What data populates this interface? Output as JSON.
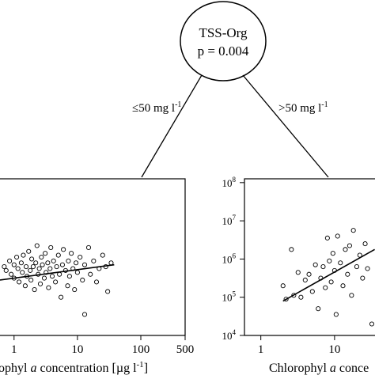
{
  "root_node": {
    "variable": "TSS-Org",
    "p_value": "p = 0.004"
  },
  "edges": {
    "left_label": "≤50 mg l",
    "left_sup": "-1",
    "right_label": ">50 mg l",
    "right_sup": "-1"
  },
  "chart_data": [
    {
      "type": "scatter",
      "panel": "left",
      "xscale": "log",
      "xlabel_prefix": "ophyl ",
      "xlabel_italic": "a",
      "xlabel_suffix": " concentration [µg l",
      "xlabel_sup": "-1",
      "xlabel_end": "]",
      "xlim": [
        0.6,
        500
      ],
      "xticks": [
        {
          "value": 1,
          "label": "1"
        },
        {
          "value": 10,
          "label": "10"
        },
        {
          "value": 100,
          "label": "100"
        },
        {
          "value": 500,
          "label": "500"
        }
      ],
      "ylim_log": [
        4,
        8.1
      ],
      "fit_line": {
        "x": [
          0.6,
          38
        ],
        "y_log": [
          5.45,
          5.85
        ]
      },
      "points": [
        {
          "x": 0.7,
          "y_log": 5.8
        },
        {
          "x": 0.75,
          "y_log": 5.7
        },
        {
          "x": 0.85,
          "y_log": 5.95
        },
        {
          "x": 0.9,
          "y_log": 5.6
        },
        {
          "x": 1.0,
          "y_log": 5.85
        },
        {
          "x": 1.0,
          "y_log": 5.5
        },
        {
          "x": 1.1,
          "y_log": 6.05
        },
        {
          "x": 1.15,
          "y_log": 5.75
        },
        {
          "x": 1.2,
          "y_log": 5.4
        },
        {
          "x": 1.3,
          "y_log": 5.9
        },
        {
          "x": 1.35,
          "y_log": 5.65
        },
        {
          "x": 1.4,
          "y_log": 6.1
        },
        {
          "x": 1.5,
          "y_log": 5.3
        },
        {
          "x": 1.55,
          "y_log": 5.8
        },
        {
          "x": 1.6,
          "y_log": 5.55
        },
        {
          "x": 1.7,
          "y_log": 6.2
        },
        {
          "x": 1.8,
          "y_log": 5.7
        },
        {
          "x": 1.85,
          "y_log": 5.45
        },
        {
          "x": 1.9,
          "y_log": 6.0
        },
        {
          "x": 2.0,
          "y_log": 5.8
        },
        {
          "x": 2.1,
          "y_log": 5.2
        },
        {
          "x": 2.2,
          "y_log": 5.9
        },
        {
          "x": 2.3,
          "y_log": 6.35
        },
        {
          "x": 2.4,
          "y_log": 5.6
        },
        {
          "x": 2.5,
          "y_log": 5.75
        },
        {
          "x": 2.6,
          "y_log": 5.35
        },
        {
          "x": 2.7,
          "y_log": 6.05
        },
        {
          "x": 2.8,
          "y_log": 5.85
        },
        {
          "x": 3.0,
          "y_log": 5.5
        },
        {
          "x": 3.1,
          "y_log": 6.15
        },
        {
          "x": 3.2,
          "y_log": 5.65
        },
        {
          "x": 3.4,
          "y_log": 5.9
        },
        {
          "x": 3.5,
          "y_log": 5.25
        },
        {
          "x": 3.7,
          "y_log": 5.75
        },
        {
          "x": 3.8,
          "y_log": 6.3
        },
        {
          "x": 4.0,
          "y_log": 5.55
        },
        {
          "x": 4.2,
          "y_log": 5.95
        },
        {
          "x": 4.5,
          "y_log": 5.4
        },
        {
          "x": 4.7,
          "y_log": 5.8
        },
        {
          "x": 5.0,
          "y_log": 6.1
        },
        {
          "x": 5.2,
          "y_log": 5.6
        },
        {
          "x": 5.5,
          "y_log": 5.0
        },
        {
          "x": 5.8,
          "y_log": 5.85
        },
        {
          "x": 6.0,
          "y_log": 6.25
        },
        {
          "x": 6.5,
          "y_log": 5.7
        },
        {
          "x": 7.0,
          "y_log": 5.3
        },
        {
          "x": 7.2,
          "y_log": 5.95
        },
        {
          "x": 7.5,
          "y_log": 5.55
        },
        {
          "x": 8.0,
          "y_log": 6.15
        },
        {
          "x": 8.5,
          "y_log": 5.75
        },
        {
          "x": 9.0,
          "y_log": 5.2
        },
        {
          "x": 9.5,
          "y_log": 5.9
        },
        {
          "x": 10,
          "y_log": 5.65
        },
        {
          "x": 11,
          "y_log": 6.05
        },
        {
          "x": 12,
          "y_log": 5.45
        },
        {
          "x": 13,
          "y_log": 5.85
        },
        {
          "x": 15,
          "y_log": 6.3
        },
        {
          "x": 16,
          "y_log": 5.6
        },
        {
          "x": 18,
          "y_log": 5.95
        },
        {
          "x": 20,
          "y_log": 5.4
        },
        {
          "x": 22,
          "y_log": 5.75
        },
        {
          "x": 25,
          "y_log": 6.1
        },
        {
          "x": 28,
          "y_log": 5.8
        },
        {
          "x": 30,
          "y_log": 5.15
        },
        {
          "x": 34,
          "y_log": 5.9
        },
        {
          "x": 13,
          "y_log": 4.55
        }
      ]
    },
    {
      "type": "scatter",
      "panel": "right",
      "xscale": "log",
      "xlabel_prefix": "Chlorophyl ",
      "xlabel_italic": "a",
      "xlabel_suffix": " conce",
      "xlim": [
        0.6,
        40
      ],
      "xticks": [
        {
          "value": 1,
          "label": "1"
        },
        {
          "value": 10,
          "label": "10"
        }
      ],
      "ylim_log": [
        4,
        8.1
      ],
      "yticks": [
        {
          "value": 4,
          "base": "10",
          "exp": "4"
        },
        {
          "value": 5,
          "base": "10",
          "exp": "5"
        },
        {
          "value": 6,
          "base": "10",
          "exp": "6"
        },
        {
          "value": 7,
          "base": "10",
          "exp": "7"
        },
        {
          "value": 8,
          "base": "10",
          "exp": "8"
        }
      ],
      "fit_line": {
        "x": [
          2.0,
          35
        ],
        "y_log": [
          4.9,
          6.25
        ]
      },
      "points": [
        {
          "x": 2.0,
          "y_log": 5.3
        },
        {
          "x": 2.2,
          "y_log": 4.95
        },
        {
          "x": 2.6,
          "y_log": 6.25
        },
        {
          "x": 2.8,
          "y_log": 5.05
        },
        {
          "x": 3.2,
          "y_log": 5.65
        },
        {
          "x": 3.5,
          "y_log": 5.0
        },
        {
          "x": 4.0,
          "y_log": 5.45
        },
        {
          "x": 4.5,
          "y_log": 5.6
        },
        {
          "x": 5.0,
          "y_log": 5.15
        },
        {
          "x": 5.5,
          "y_log": 5.85
        },
        {
          "x": 6.0,
          "y_log": 4.7
        },
        {
          "x": 6.5,
          "y_log": 5.5
        },
        {
          "x": 7.0,
          "y_log": 5.8
        },
        {
          "x": 7.5,
          "y_log": 5.25
        },
        {
          "x": 8.0,
          "y_log": 6.55
        },
        {
          "x": 8.5,
          "y_log": 5.95
        },
        {
          "x": 9.0,
          "y_log": 5.4
        },
        {
          "x": 9.5,
          "y_log": 6.15
        },
        {
          "x": 10,
          "y_log": 5.7
        },
        {
          "x": 10.5,
          "y_log": 4.55
        },
        {
          "x": 11,
          "y_log": 6.6
        },
        {
          "x": 12,
          "y_log": 5.9
        },
        {
          "x": 13,
          "y_log": 5.3
        },
        {
          "x": 14,
          "y_log": 6.25
        },
        {
          "x": 15,
          "y_log": 5.6
        },
        {
          "x": 16,
          "y_log": 6.35
        },
        {
          "x": 17,
          "y_log": 5.05
        },
        {
          "x": 18,
          "y_log": 6.75
        },
        {
          "x": 20,
          "y_log": 5.8
        },
        {
          "x": 22,
          "y_log": 6.1
        },
        {
          "x": 24,
          "y_log": 5.5
        },
        {
          "x": 26,
          "y_log": 6.4
        },
        {
          "x": 28,
          "y_log": 5.75
        },
        {
          "x": 32,
          "y_log": 4.3
        }
      ]
    }
  ]
}
